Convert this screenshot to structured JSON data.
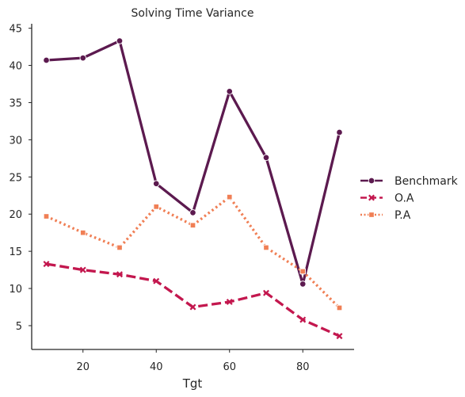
{
  "chart_data": {
    "type": "line",
    "title": "Solving Time Variance",
    "xlabel": "Tgt",
    "ylabel": "",
    "xlim": [
      6,
      94
    ],
    "ylim": [
      1.8,
      45.6
    ],
    "xticks": [
      20,
      40,
      60,
      80
    ],
    "yticks": [
      5,
      10,
      15,
      20,
      25,
      30,
      35,
      40,
      45
    ],
    "grid": false,
    "legend_position": "right",
    "x": [
      10,
      20,
      30,
      40,
      50,
      60,
      70,
      80,
      90
    ],
    "series": [
      {
        "name": "Benchmark",
        "color": "#5c1a4f",
        "style": "solid",
        "marker": "circle",
        "values": [
          40.7,
          41.0,
          43.3,
          24.1,
          20.2,
          36.5,
          27.6,
          10.6,
          31.0
        ]
      },
      {
        "name": "O.A",
        "color": "#c3174e",
        "style": "dashed",
        "marker": "x",
        "values": [
          13.3,
          12.5,
          11.9,
          11.0,
          7.5,
          8.2,
          9.4,
          5.8,
          3.6
        ]
      },
      {
        "name": "P.A",
        "color": "#f07f55",
        "style": "dotted",
        "marker": "square",
        "values": [
          19.7,
          17.5,
          15.5,
          21.0,
          18.5,
          22.3,
          15.5,
          12.3,
          7.4
        ]
      }
    ]
  }
}
